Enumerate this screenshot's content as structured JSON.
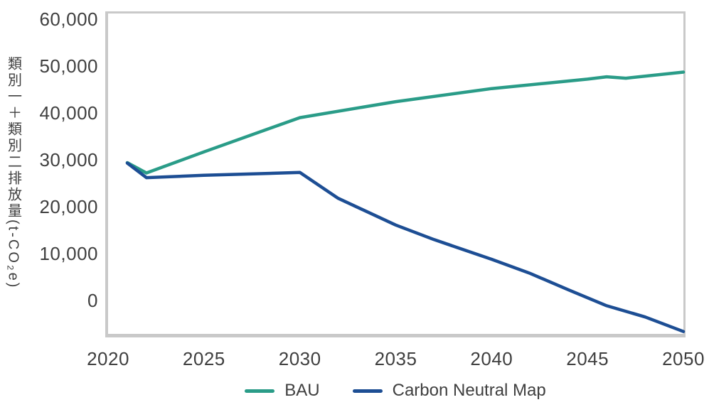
{
  "colors": {
    "bau_line": "#2a9c88",
    "carbon_neutral_line": "#1d4e94",
    "axis_frame": "#c9c9c9",
    "text": "#3f3f3f"
  },
  "y_axis": {
    "label": "類別一＋類別二排放量(t-CO₂e)",
    "ticks": [
      "60,000",
      "50,000",
      "40,000",
      "30,000",
      "20,000",
      "10,000",
      "0"
    ],
    "tick_values": [
      60000,
      50000,
      40000,
      30000,
      20000,
      10000,
      0
    ]
  },
  "x_axis": {
    "ticks": [
      "2020",
      "2025",
      "2030",
      "2035",
      "2040",
      "2045",
      "2050"
    ],
    "tick_values": [
      2020,
      2025,
      2030,
      2035,
      2040,
      2045,
      2050
    ]
  },
  "legend": [
    {
      "label": "BAU",
      "color": "#2a9c88"
    },
    {
      "label": "Carbon Neutral Map",
      "color": "#1d4e94"
    }
  ],
  "chart_data": {
    "type": "line",
    "title": "",
    "xlabel": "",
    "ylabel": "類別一＋類別二排放量(t-CO₂e)",
    "xlim": [
      2020,
      2050
    ],
    "ylim": [
      -7100,
      61200
    ],
    "grid": false,
    "legend_position": "bottom",
    "series": [
      {
        "name": "BAU",
        "color": "#2a9c88",
        "x": [
          2021,
          2022,
          2025,
          2030,
          2035,
          2040,
          2043,
          2045,
          2046,
          2047,
          2050
        ],
        "y": [
          29400,
          27200,
          31700,
          39000,
          42400,
          45200,
          46400,
          47200,
          47700,
          47400,
          48700
        ]
      },
      {
        "name": "Carbon Neutral Map",
        "color": "#1d4e94",
        "x": [
          2021,
          2022,
          2025,
          2030,
          2032,
          2035,
          2037,
          2040,
          2042,
          2044,
          2046,
          2048,
          2050
        ],
        "y": [
          29300,
          26200,
          26700,
          27300,
          21800,
          16100,
          13000,
          8800,
          5800,
          2300,
          -1100,
          -3500,
          -6600
        ]
      }
    ]
  }
}
